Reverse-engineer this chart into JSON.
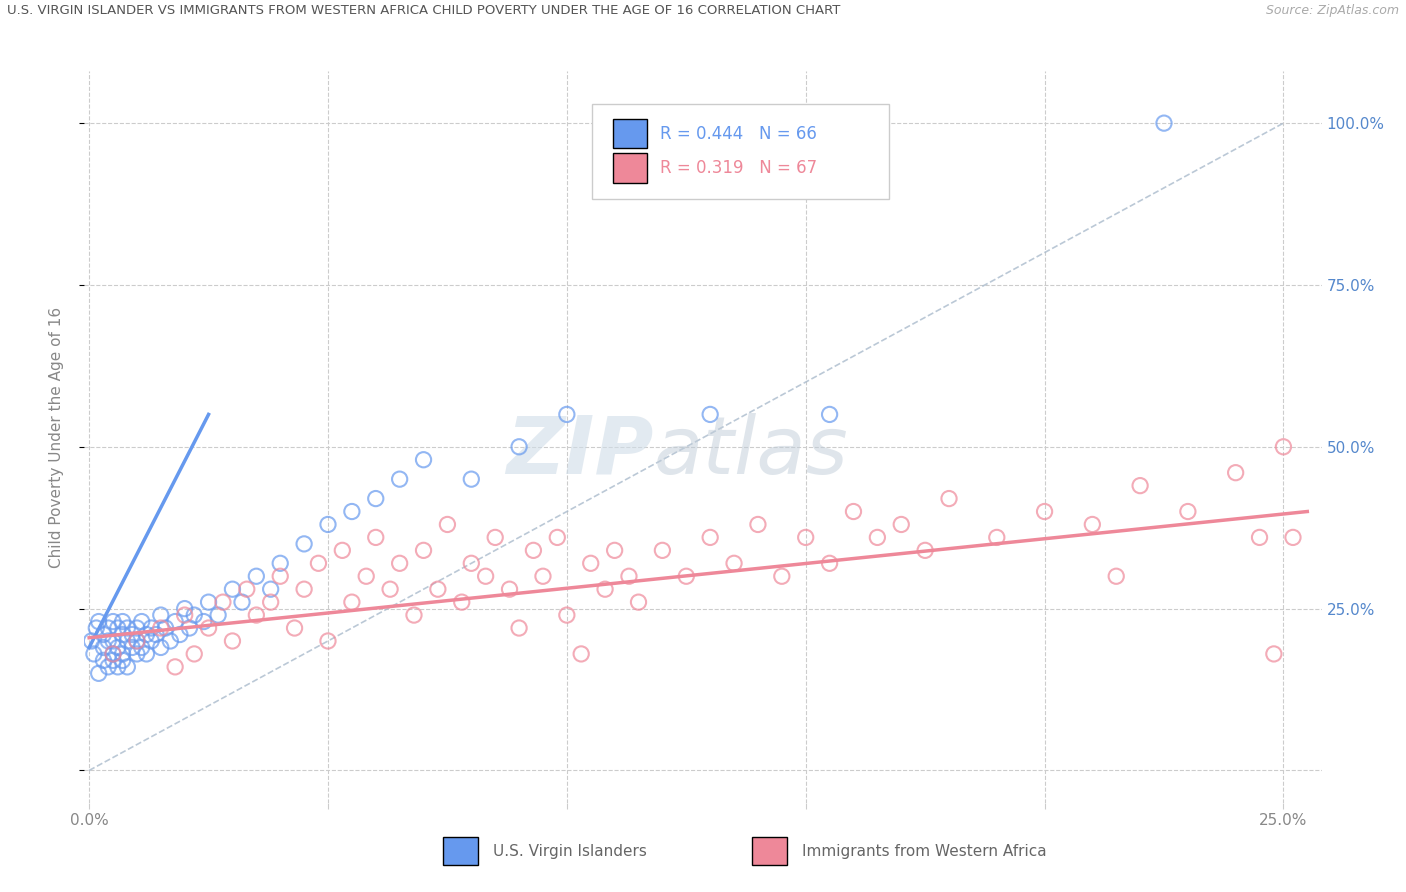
{
  "title": "U.S. VIRGIN ISLANDER VS IMMIGRANTS FROM WESTERN AFRICA CHILD POVERTY UNDER THE AGE OF 16 CORRELATION CHART",
  "source": "Source: ZipAtlas.com",
  "xlabel_blue": "U.S. Virgin Islanders",
  "xlabel_pink": "Immigrants from Western Africa",
  "ylabel": "Child Poverty Under the Age of 16",
  "R_blue": 0.444,
  "N_blue": 66,
  "R_pink": 0.319,
  "N_pink": 67,
  "blue_color": "#6699ee",
  "pink_color": "#ee8899",
  "xlim": [
    -0.001,
    0.258
  ],
  "ylim": [
    -0.05,
    1.08
  ],
  "xticks": [
    0.0,
    0.05,
    0.1,
    0.15,
    0.2,
    0.25
  ],
  "yticks": [
    0.0,
    0.25,
    0.5,
    0.75,
    1.0
  ],
  "blue_scatter_x": [
    0.0005,
    0.001,
    0.0015,
    0.002,
    0.002,
    0.003,
    0.003,
    0.003,
    0.004,
    0.004,
    0.004,
    0.005,
    0.005,
    0.005,
    0.005,
    0.006,
    0.006,
    0.006,
    0.007,
    0.007,
    0.007,
    0.007,
    0.008,
    0.008,
    0.008,
    0.009,
    0.009,
    0.01,
    0.01,
    0.01,
    0.011,
    0.011,
    0.012,
    0.012,
    0.013,
    0.013,
    0.014,
    0.015,
    0.015,
    0.016,
    0.017,
    0.018,
    0.019,
    0.02,
    0.021,
    0.022,
    0.024,
    0.025,
    0.027,
    0.03,
    0.032,
    0.035,
    0.038,
    0.04,
    0.045,
    0.05,
    0.055,
    0.06,
    0.065,
    0.07,
    0.08,
    0.09,
    0.1,
    0.13,
    0.155,
    0.225
  ],
  "blue_scatter_y": [
    0.2,
    0.18,
    0.22,
    0.15,
    0.23,
    0.17,
    0.21,
    0.19,
    0.16,
    0.22,
    0.2,
    0.18,
    0.23,
    0.17,
    0.2,
    0.16,
    0.22,
    0.19,
    0.18,
    0.21,
    0.17,
    0.23,
    0.2,
    0.16,
    0.22,
    0.19,
    0.21,
    0.18,
    0.22,
    0.2,
    0.19,
    0.23,
    0.21,
    0.18,
    0.22,
    0.2,
    0.21,
    0.24,
    0.19,
    0.22,
    0.2,
    0.23,
    0.21,
    0.25,
    0.22,
    0.24,
    0.23,
    0.26,
    0.24,
    0.28,
    0.26,
    0.3,
    0.28,
    0.32,
    0.35,
    0.38,
    0.4,
    0.42,
    0.45,
    0.48,
    0.45,
    0.5,
    0.55,
    0.55,
    0.55,
    1.0
  ],
  "pink_scatter_x": [
    0.005,
    0.01,
    0.015,
    0.018,
    0.02,
    0.022,
    0.025,
    0.028,
    0.03,
    0.033,
    0.035,
    0.038,
    0.04,
    0.043,
    0.045,
    0.048,
    0.05,
    0.053,
    0.055,
    0.058,
    0.06,
    0.063,
    0.065,
    0.068,
    0.07,
    0.073,
    0.075,
    0.078,
    0.08,
    0.083,
    0.085,
    0.088,
    0.09,
    0.093,
    0.095,
    0.098,
    0.1,
    0.103,
    0.105,
    0.108,
    0.11,
    0.113,
    0.115,
    0.12,
    0.125,
    0.13,
    0.135,
    0.14,
    0.145,
    0.15,
    0.155,
    0.16,
    0.165,
    0.17,
    0.175,
    0.18,
    0.19,
    0.2,
    0.21,
    0.215,
    0.22,
    0.23,
    0.24,
    0.245,
    0.248,
    0.25,
    0.252
  ],
  "pink_scatter_y": [
    0.18,
    0.2,
    0.22,
    0.16,
    0.24,
    0.18,
    0.22,
    0.26,
    0.2,
    0.28,
    0.24,
    0.26,
    0.3,
    0.22,
    0.28,
    0.32,
    0.2,
    0.34,
    0.26,
    0.3,
    0.36,
    0.28,
    0.32,
    0.24,
    0.34,
    0.28,
    0.38,
    0.26,
    0.32,
    0.3,
    0.36,
    0.28,
    0.22,
    0.34,
    0.3,
    0.36,
    0.24,
    0.18,
    0.32,
    0.28,
    0.34,
    0.3,
    0.26,
    0.34,
    0.3,
    0.36,
    0.32,
    0.38,
    0.3,
    0.36,
    0.32,
    0.4,
    0.36,
    0.38,
    0.34,
    0.42,
    0.36,
    0.4,
    0.38,
    0.3,
    0.44,
    0.4,
    0.46,
    0.36,
    0.18,
    0.5,
    0.36
  ],
  "blue_line_x": [
    0.0,
    0.025
  ],
  "blue_line_y": [
    0.19,
    0.55
  ],
  "pink_line_x": [
    0.0,
    0.255
  ],
  "pink_line_y": [
    0.205,
    0.4
  ]
}
